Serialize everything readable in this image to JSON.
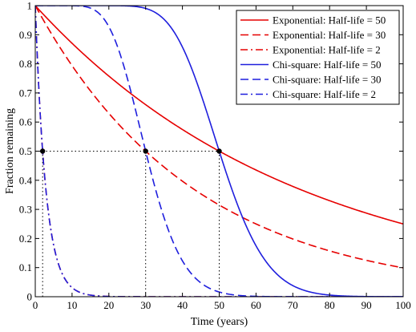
{
  "chart_data": {
    "type": "line",
    "xlabel": "Time (years)",
    "ylabel": "Fraction remaining",
    "xlim": [
      0,
      100
    ],
    "ylim": [
      0,
      1
    ],
    "xticks": [
      0,
      10,
      20,
      30,
      40,
      50,
      60,
      70,
      80,
      90,
      100
    ],
    "yticks": [
      0,
      0.1,
      0.2,
      0.3,
      0.4,
      0.5,
      0.6,
      0.7,
      0.8,
      0.9,
      1
    ],
    "xtick_labels": [
      "0",
      "10",
      "20",
      "30",
      "40",
      "50",
      "60",
      "70",
      "80",
      "90",
      "100"
    ],
    "ytick_labels": [
      "0",
      "0.1",
      "0.2",
      "0.3",
      "0.4",
      "0.5",
      "0.6",
      "0.7",
      "0.8",
      "0.9",
      "1"
    ],
    "grid": false,
    "legend_position": "top-right",
    "x": [
      0,
      1,
      2,
      3,
      4,
      5,
      6,
      8,
      10,
      12,
      15,
      20,
      25,
      30,
      35,
      40,
      45,
      50,
      55,
      60,
      65,
      70,
      75,
      80,
      85,
      90,
      95,
      100
    ],
    "series": [
      {
        "name": "Exponential: Half-life = 50",
        "model": "exponential",
        "half_life": 50,
        "color": "#e60000",
        "dash": "solid",
        "values": [
          1,
          0.986,
          0.973,
          0.959,
          0.946,
          0.933,
          0.92,
          0.895,
          0.871,
          0.847,
          0.812,
          0.758,
          0.707,
          0.66,
          0.616,
          0.574,
          0.536,
          0.5,
          0.467,
          0.435,
          0.406,
          0.379,
          0.354,
          0.33,
          0.308,
          0.287,
          0.268,
          0.25
        ]
      },
      {
        "name": "Exponential: Half-life = 30",
        "model": "exponential",
        "half_life": 30,
        "color": "#e60000",
        "dash": "dashed",
        "values": [
          1,
          0.977,
          0.955,
          0.933,
          0.912,
          0.891,
          0.871,
          0.831,
          0.794,
          0.758,
          0.707,
          0.63,
          0.561,
          0.5,
          0.445,
          0.397,
          0.354,
          0.315,
          0.281,
          0.25,
          0.223,
          0.198,
          0.177,
          0.157,
          0.14,
          0.125,
          0.111,
          0.099
        ]
      },
      {
        "name": "Exponential: Half-life = 2",
        "model": "exponential",
        "half_life": 2,
        "color": "#e60000",
        "dash": "dashdot",
        "values": [
          1,
          0.707,
          0.5,
          0.354,
          0.25,
          0.177,
          0.125,
          0.063,
          0.031,
          0.016,
          0.006,
          0.001,
          0,
          0,
          0,
          0,
          0,
          0,
          0,
          0,
          0,
          0,
          0,
          0,
          0,
          0,
          0,
          0
        ]
      },
      {
        "name": "Chi-square: Half-life = 50",
        "model": "chi-square",
        "half_life": 50,
        "color": "#1f1fdd",
        "dash": "solid",
        "values": [
          1,
          1,
          1,
          1,
          1,
          1,
          1,
          1,
          1,
          1,
          1,
          0.999,
          0.993,
          0.971,
          0.91,
          0.79,
          0.64,
          0.5,
          0.3,
          0.16,
          0.08,
          0.04,
          0.016,
          0.006,
          0.002,
          0.001,
          0,
          0
        ]
      },
      {
        "name": "Chi-square: Half-life = 30",
        "model": "chi-square",
        "half_life": 30,
        "color": "#1f1fdd",
        "dash": "dashed",
        "values": [
          1,
          1,
          1,
          1,
          1,
          1,
          1,
          1,
          1,
          1,
          0.998,
          0.97,
          0.84,
          0.5,
          0.2,
          0.06,
          0.02,
          0.006,
          0.002,
          0,
          0,
          0,
          0,
          0,
          0,
          0,
          0,
          0
        ]
      },
      {
        "name": "Chi-square: Half-life = 2",
        "model": "chi-square",
        "half_life": 2,
        "color": "#1f1fdd",
        "dash": "dashdot",
        "values": [
          1,
          0.85,
          0.5,
          0.3,
          0.16,
          0.1,
          0.06,
          0.022,
          0.008,
          0.003,
          0.001,
          0,
          0,
          0,
          0,
          0,
          0,
          0,
          0,
          0,
          0,
          0,
          0,
          0,
          0,
          0,
          0,
          0
        ]
      }
    ],
    "reference_level": 0.5,
    "reference_points": [
      {
        "x": 2,
        "y": 0.5
      },
      {
        "x": 30,
        "y": 0.5
      },
      {
        "x": 50,
        "y": 0.5
      }
    ]
  }
}
